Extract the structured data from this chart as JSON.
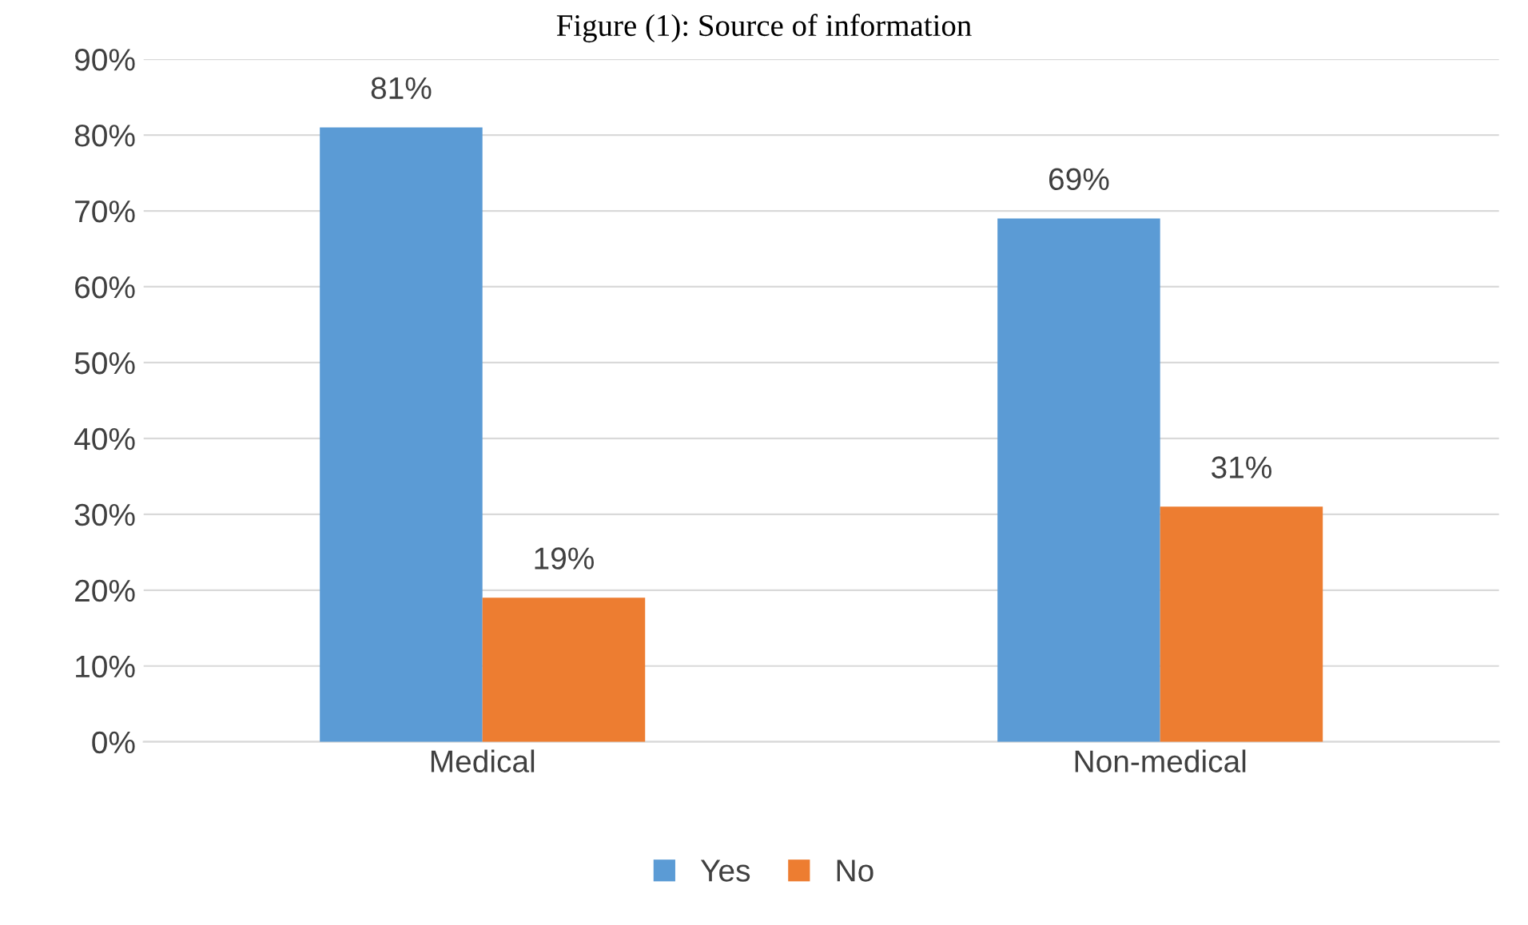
{
  "chart_data": {
    "type": "bar",
    "title": "Figure (1): Source of information",
    "categories": [
      "Medical",
      "Non-medical"
    ],
    "series": [
      {
        "name": "Yes",
        "color": "#5b9bd5",
        "values": [
          81,
          69
        ],
        "value_labels": [
          "81%",
          "69%"
        ]
      },
      {
        "name": "No",
        "color": "#ed7d31",
        "values": [
          19,
          31
        ],
        "value_labels": [
          "19%",
          "31%"
        ]
      }
    ],
    "ylim": [
      0,
      90
    ],
    "yticks": [
      {
        "value": 0,
        "label": "0%"
      },
      {
        "value": 10,
        "label": "10%"
      },
      {
        "value": 20,
        "label": "20%"
      },
      {
        "value": 30,
        "label": "30%"
      },
      {
        "value": 40,
        "label": "40%"
      },
      {
        "value": 50,
        "label": "50%"
      },
      {
        "value": 60,
        "label": "60%"
      },
      {
        "value": 70,
        "label": "70%"
      },
      {
        "value": 80,
        "label": "80%"
      },
      {
        "value": 90,
        "label": "90%"
      }
    ],
    "grid": "y",
    "legend": "bottom"
  }
}
